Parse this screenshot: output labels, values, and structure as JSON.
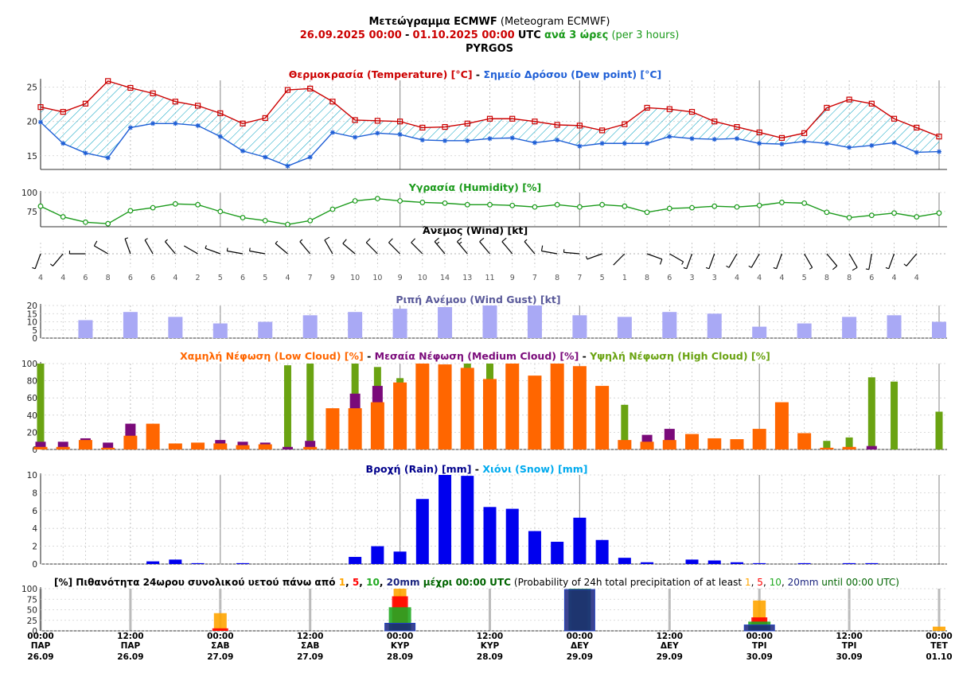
{
  "header": {
    "line1_bold": "Μετεώγραμμα ECMWF",
    "line1_rest": "(Meteogram ECMWF)",
    "line2_start": "26.09.2025 00:00",
    "line2_dash": "-",
    "line2_end": "01.10.2025 00:00",
    "line2_utc": "UTC",
    "line2_every": "ανά 3 ώρες",
    "line2_per": "(per 3 hours)",
    "line3": "PYRGOS"
  },
  "colors": {
    "temp": "#cc0000",
    "dew": "#1f5fd6",
    "hum": "#1a9a1a",
    "gust": "#a9a9f5",
    "low": "#ff6600",
    "medium": "#7a0a7a",
    "high": "#6aa312",
    "rain": "#0000ee",
    "snow": "#00aaee",
    "p1": "#ffa500",
    "p5": "#ff0000",
    "p10": "#22aa22",
    "p20": "#1a237e"
  },
  "time_axis": {
    "times": [
      "00:00",
      "12:00",
      "00:00",
      "12:00",
      "00:00",
      "12:00",
      "00:00",
      "12:00",
      "00:00",
      "12:00",
      "00:00"
    ],
    "days": [
      "ΠΑΡ",
      "ΠΑΡ",
      "ΣΑΒ",
      "ΣΑΒ",
      "ΚΥΡ",
      "ΚΥΡ",
      "ΔΕΥ",
      "ΔΕΥ",
      "ΤΡΙ",
      "ΤΡΙ",
      "ΤΕΤ"
    ],
    "dates": [
      "26.09",
      "26.09",
      "27.09",
      "27.09",
      "28.09",
      "28.09",
      "29.09",
      "29.09",
      "30.09",
      "30.09",
      "01.10"
    ]
  },
  "chart_data": [
    {
      "id": "temperature",
      "type": "line",
      "title_parts": [
        "Θερμοκρασία (Temperature) [°C]",
        " - ",
        "Σημείο Δρόσου (Dew point) [°C]"
      ],
      "ylim": [
        13,
        26
      ],
      "yticks": [
        15,
        20,
        25
      ],
      "series": [
        {
          "name": "Θερμοκρασία (Temperature) [°C]",
          "values": [
            22.1,
            21.4,
            22.6,
            25.9,
            24.9,
            24.1,
            22.9,
            22.3,
            21.2,
            19.7,
            20.5,
            24.6,
            24.8,
            22.9,
            20.2,
            20.1,
            20.0,
            19.1,
            19.2,
            19.7,
            20.4,
            20.4,
            20.0,
            19.5,
            19.4,
            18.7,
            19.6,
            22.0,
            21.8,
            21.4,
            20.0,
            19.2,
            18.4,
            17.6,
            18.3,
            22.0,
            23.2,
            22.6,
            20.4,
            19.1,
            17.8
          ]
        },
        {
          "name": "Σημείο Δρόσου (Dew point) [°C]",
          "values": [
            19.9,
            16.8,
            15.4,
            14.7,
            19.1,
            19.7,
            19.7,
            19.4,
            17.8,
            15.7,
            14.8,
            13.5,
            14.8,
            18.4,
            17.7,
            18.3,
            18.1,
            17.3,
            17.2,
            17.2,
            17.5,
            17.6,
            16.9,
            17.3,
            16.4,
            16.8,
            16.8,
            16.8,
            17.8,
            17.5,
            17.4,
            17.5,
            16.8,
            16.7,
            17.1,
            16.8,
            16.2,
            16.5,
            16.9,
            15.5,
            15.6
          ]
        }
      ]
    },
    {
      "id": "humidity",
      "type": "line",
      "title": "Υγρασία (Humidity) [%]",
      "ylim": [
        55,
        100
      ],
      "yticks": [
        75,
        100
      ],
      "series": [
        {
          "name": "Υγρασία (Humidity) [%]",
          "values": [
            82,
            68,
            61,
            59,
            76,
            80,
            85,
            84,
            75,
            67,
            63,
            58,
            63,
            78,
            89,
            92,
            89,
            87,
            86,
            84,
            84,
            83,
            81,
            84,
            81,
            84,
            82,
            74,
            79,
            80,
            82,
            81,
            83,
            87,
            86,
            74,
            67,
            70,
            73,
            68,
            73
          ]
        }
      ]
    },
    {
      "id": "wind",
      "type": "table",
      "title": "Άνεμος (Wind) [kt]",
      "speeds": [
        4,
        4,
        6,
        8,
        6,
        6,
        4,
        2,
        5,
        6,
        5,
        4,
        7,
        9,
        10,
        10,
        9,
        10,
        14,
        13,
        11,
        9,
        7,
        8,
        7,
        5,
        1,
        8,
        6,
        3,
        3,
        4,
        4,
        4,
        5,
        8,
        8,
        6,
        4,
        4
      ],
      "directions_deg": [
        200,
        220,
        270,
        300,
        340,
        330,
        320,
        300,
        290,
        280,
        280,
        310,
        320,
        330,
        310,
        315,
        315,
        315,
        320,
        320,
        320,
        320,
        320,
        280,
        275,
        250,
        225,
        110,
        120,
        200,
        200,
        210,
        210,
        200,
        150,
        140,
        150,
        190,
        200,
        220
      ]
    },
    {
      "id": "wind_gust",
      "type": "bar",
      "title": "Ριπή Ανέμου (Wind Gust) [kt]",
      "ylim": [
        0,
        20
      ],
      "yticks": [
        0,
        5,
        10,
        15,
        20
      ],
      "values": [
        11,
        16,
        13,
        9,
        10,
        14,
        16,
        18,
        19,
        21,
        21,
        14,
        13,
        16,
        15,
        7,
        9,
        13,
        14,
        10
      ]
    },
    {
      "id": "clouds",
      "type": "bar",
      "title_parts": [
        "Χαμηλή Νέφωση (Low Cloud) [%]",
        " - ",
        "Μεσαία Νέφωση (Medium Cloud) [%]",
        " - ",
        "Υψηλή Νέφωση (High Cloud) [%]"
      ],
      "ylim": [
        0,
        100
      ],
      "yticks": [
        0,
        20,
        40,
        60,
        80,
        100
      ],
      "series": [
        {
          "name": "Χαμηλή Νέφωση (Low Cloud) [%]",
          "values": [
            3,
            3,
            11,
            2,
            16,
            30,
            7,
            8,
            7,
            5,
            6,
            0,
            3,
            48,
            48,
            55,
            78,
            100,
            99,
            95,
            82,
            100,
            86,
            100,
            97,
            74,
            11,
            9,
            11,
            18,
            13,
            12,
            24,
            55,
            19,
            2,
            3,
            0,
            0,
            0,
            0
          ]
        },
        {
          "name": "Μεσαία Νέφωση (Medium Cloud) [%]",
          "values": [
            9,
            9,
            13,
            8,
            30,
            18,
            0,
            0,
            11,
            9,
            8,
            3,
            10,
            0,
            65,
            74,
            0,
            0,
            0,
            0,
            0,
            0,
            0,
            0,
            0,
            0,
            0,
            17,
            24,
            0,
            0,
            0,
            0,
            0,
            0,
            0,
            2,
            4,
            0,
            0,
            0
          ]
        },
        {
          "name": "Υψηλή Νέφωση (High Cloud) [%]",
          "values": [
            100,
            0,
            0,
            0,
            0,
            0,
            0,
            0,
            0,
            0,
            0,
            98,
            100,
            0,
            100,
            96,
            83,
            0,
            0,
            100,
            100,
            0,
            0,
            0,
            0,
            0,
            52,
            0,
            0,
            0,
            0,
            0,
            0,
            0,
            0,
            10,
            14,
            84,
            79,
            0,
            44
          ]
        }
      ]
    },
    {
      "id": "precipitation",
      "type": "bar",
      "title_parts": [
        "Βροχή (Rain) [mm]",
        " - ",
        "Χιόνι (Snow) [mm]"
      ],
      "ylim": [
        0,
        10
      ],
      "yticks": [
        0,
        2,
        4,
        6,
        8,
        10
      ],
      "series": [
        {
          "name": "Βροχή (Rain) [mm]",
          "values": [
            0,
            0,
            0,
            0,
            0.3,
            0.5,
            0.1,
            0,
            0.1,
            0,
            0,
            0,
            0,
            0.8,
            2.0,
            1.4,
            7.3,
            10,
            9.9,
            6.4,
            6.2,
            3.7,
            2.5,
            5.2,
            2.7,
            0.7,
            0.2,
            0,
            0.5,
            0.4,
            0.2,
            0.1,
            0,
            0.1,
            0,
            0.1,
            0.1,
            0,
            0,
            0
          ]
        },
        {
          "name": "Χιόνι (Snow) [mm]",
          "values": [
            0,
            0,
            0,
            0,
            0,
            0,
            0,
            0,
            0,
            0,
            0,
            0,
            0,
            0,
            0,
            0,
            0,
            0,
            0,
            0,
            0,
            0,
            0,
            0,
            0,
            0,
            0,
            0,
            0,
            0,
            0,
            0,
            0,
            0,
            0,
            0,
            0,
            0,
            0,
            0
          ]
        }
      ]
    },
    {
      "id": "probability_24h",
      "type": "bar",
      "title_parts": [
        "[%] Πιθανότητα 24ωρου συνολικού υετού πάνω από ",
        "1",
        ", ",
        "5",
        ", ",
        "10",
        ", ",
        "20mm",
        " μέχρι 00:00 UTC",
        " (Probability of 24h total precipitation of at least ",
        "1",
        ", ",
        "5",
        ", ",
        "10",
        ", ",
        "20mm",
        " until 00:00 UTC)"
      ],
      "ylim": [
        0,
        100
      ],
      "yticks": [
        0,
        25,
        50,
        75,
        100
      ],
      "categories": [
        "27.09",
        "28.09",
        "29.09",
        "30.09",
        "01.10"
      ],
      "series": [
        {
          "name": "1",
          "values": [
            42,
            100,
            100,
            72,
            10
          ]
        },
        {
          "name": "5",
          "values": [
            6,
            82,
            100,
            32,
            0
          ]
        },
        {
          "name": "10",
          "values": [
            0,
            56,
            100,
            22,
            0
          ]
        },
        {
          "name": "20mm",
          "values": [
            0,
            18,
            98,
            14,
            0
          ]
        }
      ]
    }
  ]
}
